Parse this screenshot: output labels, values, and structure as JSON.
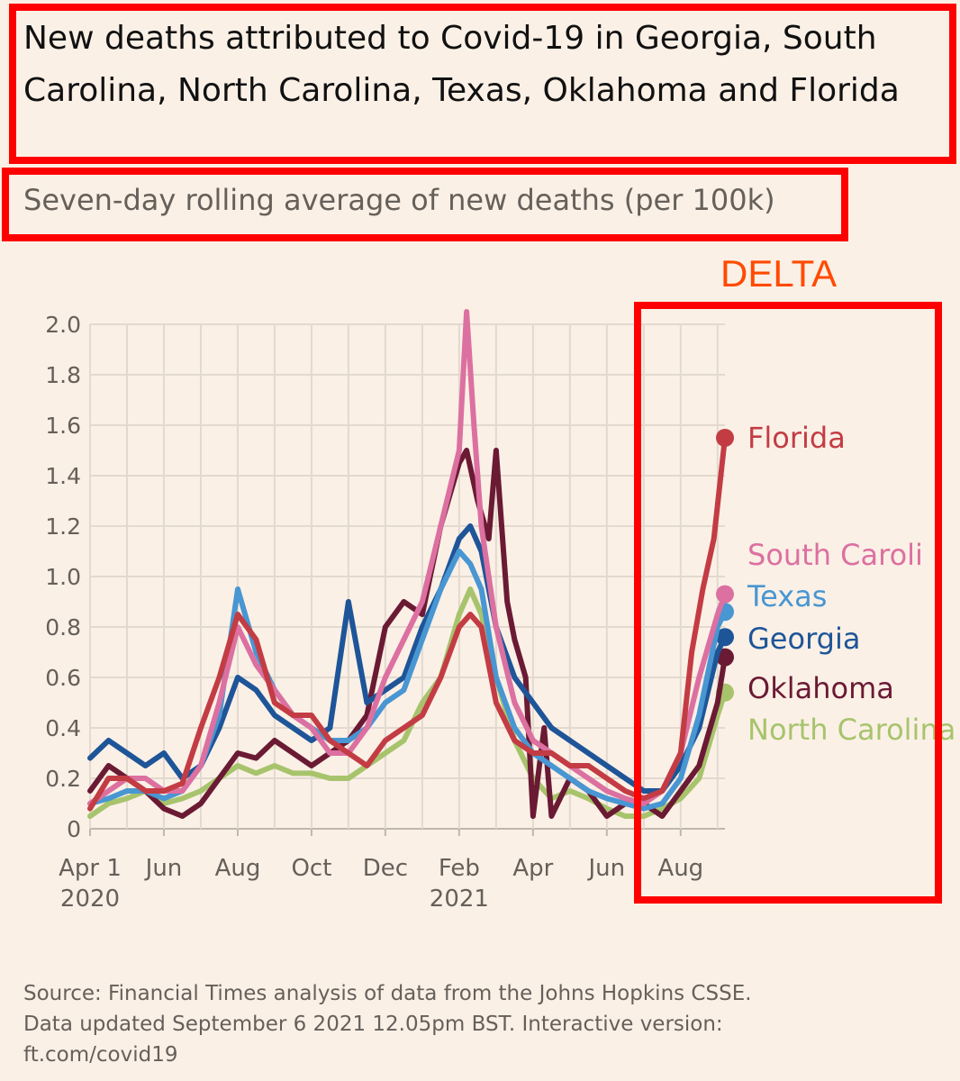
{
  "header": {
    "title": "New deaths attributed to Covid-19 in Georgia, South Carolina, North Carolina, Texas, Oklahoma and Florida",
    "subtitle": "Seven-day rolling average of new deaths (per 100k)"
  },
  "annotation": {
    "delta_label": "DELTA"
  },
  "footer": {
    "source_line1": "Source: Financial Times analysis of data from the Johns Hopkins CSSE.",
    "source_line2": "Data updated September 6 2021 12.05pm BST. Interactive version:",
    "source_line3": "ft.com/covid19"
  },
  "chart_data": {
    "type": "line",
    "title": "New deaths attributed to Covid-19 in Georgia, South Carolina, North Carolina, Texas, Oklahoma and Florida",
    "subtitle": "Seven-day rolling average of new deaths (per 100k)",
    "xlabel": "",
    "ylabel": "",
    "ylim": [
      0,
      2.0
    ],
    "y_ticks": [
      0,
      0.2,
      0.4,
      0.6,
      0.8,
      1.0,
      1.2,
      1.4,
      1.6,
      1.8,
      2.0
    ],
    "y_tick_labels": [
      "0",
      "0.2",
      "0.4",
      "0.6",
      "0.8",
      "1.0",
      "1.2",
      "1.4",
      "1.6",
      "1.8",
      "2.0"
    ],
    "x_ticks": [
      {
        "month": 0,
        "label": "Apr 1",
        "year": "2020"
      },
      {
        "month": 2,
        "label": "Jun",
        "year": ""
      },
      {
        "month": 4,
        "label": "Aug",
        "year": ""
      },
      {
        "month": 6,
        "label": "Oct",
        "year": ""
      },
      {
        "month": 8,
        "label": "Dec",
        "year": ""
      },
      {
        "month": 10,
        "label": "Feb",
        "year": "2021"
      },
      {
        "month": 12,
        "label": "Apr",
        "year": ""
      },
      {
        "month": 14,
        "label": "Jun",
        "year": ""
      },
      {
        "month": 16,
        "label": "Aug",
        "year": ""
      }
    ],
    "x_unit": "months since Apr 1 2020",
    "xlim": [
      0,
      17.2
    ],
    "grid": true,
    "series": [
      {
        "name": "North Carolina",
        "label": "North Carolina",
        "color": "#a7c46c",
        "end_dot": 0.54,
        "x": [
          0,
          0.5,
          1,
          1.5,
          2,
          2.5,
          3,
          3.5,
          4,
          4.5,
          5,
          5.5,
          6,
          6.5,
          7,
          7.5,
          8,
          8.5,
          9,
          9.5,
          10,
          10.3,
          10.6,
          11,
          11.5,
          12,
          12.5,
          13,
          13.5,
          14,
          14.5,
          15,
          15.5,
          16,
          16.5,
          17,
          17.2
        ],
        "values": [
          0.05,
          0.1,
          0.12,
          0.15,
          0.1,
          0.12,
          0.15,
          0.2,
          0.25,
          0.22,
          0.25,
          0.22,
          0.22,
          0.2,
          0.2,
          0.25,
          0.3,
          0.35,
          0.5,
          0.6,
          0.85,
          0.95,
          0.85,
          0.6,
          0.35,
          0.2,
          0.12,
          0.15,
          0.12,
          0.08,
          0.05,
          0.05,
          0.08,
          0.12,
          0.2,
          0.45,
          0.54
        ]
      },
      {
        "name": "Oklahoma",
        "label": "Oklahoma",
        "color": "#6b1a34",
        "end_dot": 0.68,
        "x": [
          0,
          0.5,
          1,
          1.5,
          2,
          2.5,
          3,
          3.5,
          4,
          4.5,
          5,
          5.5,
          6,
          6.5,
          7,
          7.5,
          8,
          8.5,
          9,
          9.5,
          10,
          10.2,
          10.5,
          10.8,
          11,
          11.3,
          11.5,
          11.8,
          12,
          12.3,
          12.5,
          13,
          13.5,
          14,
          14.5,
          15,
          15.5,
          16,
          16.5,
          17,
          17.2
        ],
        "values": [
          0.15,
          0.25,
          0.2,
          0.15,
          0.08,
          0.05,
          0.1,
          0.2,
          0.3,
          0.28,
          0.35,
          0.3,
          0.25,
          0.3,
          0.35,
          0.45,
          0.8,
          0.9,
          0.85,
          1.2,
          1.45,
          1.5,
          1.3,
          1.15,
          1.5,
          0.9,
          0.75,
          0.6,
          0.05,
          0.4,
          0.05,
          0.2,
          0.15,
          0.05,
          0.1,
          0.1,
          0.05,
          0.15,
          0.25,
          0.5,
          0.68
        ]
      },
      {
        "name": "Georgia",
        "label": "Georgia",
        "color": "#1e5598",
        "end_dot": 0.76,
        "x": [
          0,
          0.5,
          1,
          1.5,
          2,
          2.5,
          3,
          3.5,
          4,
          4.5,
          5,
          5.5,
          6,
          6.5,
          7,
          7.5,
          8,
          8.5,
          9,
          9.5,
          10,
          10.3,
          10.6,
          11,
          11.5,
          12,
          12.5,
          13,
          13.5,
          14,
          14.5,
          15,
          15.5,
          16,
          16.5,
          17,
          17.2
        ],
        "values": [
          0.28,
          0.35,
          0.3,
          0.25,
          0.3,
          0.2,
          0.25,
          0.4,
          0.6,
          0.55,
          0.45,
          0.4,
          0.35,
          0.4,
          0.9,
          0.5,
          0.55,
          0.6,
          0.8,
          0.95,
          1.15,
          1.2,
          1.1,
          0.8,
          0.6,
          0.5,
          0.4,
          0.35,
          0.3,
          0.25,
          0.2,
          0.15,
          0.15,
          0.25,
          0.4,
          0.7,
          0.76
        ]
      },
      {
        "name": "Texas",
        "label": "Texas",
        "color": "#4896d2",
        "end_dot": 0.86,
        "x": [
          0,
          0.5,
          1,
          1.5,
          2,
          2.5,
          3,
          3.5,
          4,
          4.5,
          5,
          5.5,
          6,
          6.5,
          7,
          7.5,
          8,
          8.5,
          9,
          9.5,
          10,
          10.3,
          10.6,
          11,
          11.5,
          12,
          12.5,
          13,
          13.5,
          14,
          14.5,
          15,
          15.5,
          16,
          16.5,
          17,
          17.2
        ],
        "values": [
          0.1,
          0.12,
          0.15,
          0.15,
          0.12,
          0.15,
          0.25,
          0.45,
          0.95,
          0.7,
          0.55,
          0.45,
          0.4,
          0.35,
          0.35,
          0.4,
          0.5,
          0.55,
          0.75,
          0.95,
          1.1,
          1.05,
          0.95,
          0.6,
          0.4,
          0.3,
          0.25,
          0.2,
          0.15,
          0.12,
          0.1,
          0.08,
          0.1,
          0.2,
          0.45,
          0.8,
          0.86
        ]
      },
      {
        "name": "South Carolina",
        "label": "South Caroli",
        "color": "#dc70a0",
        "end_dot": 0.93,
        "x": [
          0,
          0.5,
          1,
          1.5,
          2,
          2.5,
          3,
          3.5,
          4,
          4.5,
          5,
          5.5,
          6,
          6.5,
          7,
          7.5,
          8,
          8.5,
          9,
          9.5,
          10,
          10.2,
          10.4,
          10.6,
          11,
          11.5,
          12,
          12.5,
          13,
          13.5,
          14,
          14.5,
          15,
          15.5,
          16,
          16.5,
          17,
          17.2
        ],
        "values": [
          0.1,
          0.15,
          0.2,
          0.2,
          0.15,
          0.15,
          0.25,
          0.5,
          0.8,
          0.65,
          0.55,
          0.45,
          0.4,
          0.3,
          0.3,
          0.4,
          0.6,
          0.75,
          0.9,
          1.2,
          1.5,
          2.05,
          1.6,
          1.2,
          0.8,
          0.5,
          0.35,
          0.3,
          0.25,
          0.2,
          0.15,
          0.12,
          0.1,
          0.15,
          0.3,
          0.6,
          0.85,
          0.93
        ]
      },
      {
        "name": "Florida",
        "label": "Florida",
        "color": "#c33c44",
        "end_dot": 1.55,
        "x": [
          0,
          0.5,
          1,
          1.5,
          2,
          2.5,
          3,
          3.5,
          4,
          4.5,
          5,
          5.5,
          6,
          6.5,
          7,
          7.5,
          8,
          8.5,
          9,
          9.5,
          10,
          10.3,
          10.6,
          11,
          11.5,
          12,
          12.5,
          13,
          13.5,
          14,
          14.5,
          15,
          15.5,
          16,
          16.3,
          16.6,
          16.9,
          17.2
        ],
        "values": [
          0.08,
          0.2,
          0.2,
          0.15,
          0.15,
          0.18,
          0.4,
          0.6,
          0.85,
          0.75,
          0.5,
          0.45,
          0.45,
          0.35,
          0.3,
          0.25,
          0.35,
          0.4,
          0.45,
          0.6,
          0.8,
          0.85,
          0.8,
          0.5,
          0.35,
          0.3,
          0.3,
          0.25,
          0.25,
          0.2,
          0.15,
          0.12,
          0.15,
          0.3,
          0.7,
          0.95,
          1.15,
          1.55
        ]
      }
    ]
  }
}
